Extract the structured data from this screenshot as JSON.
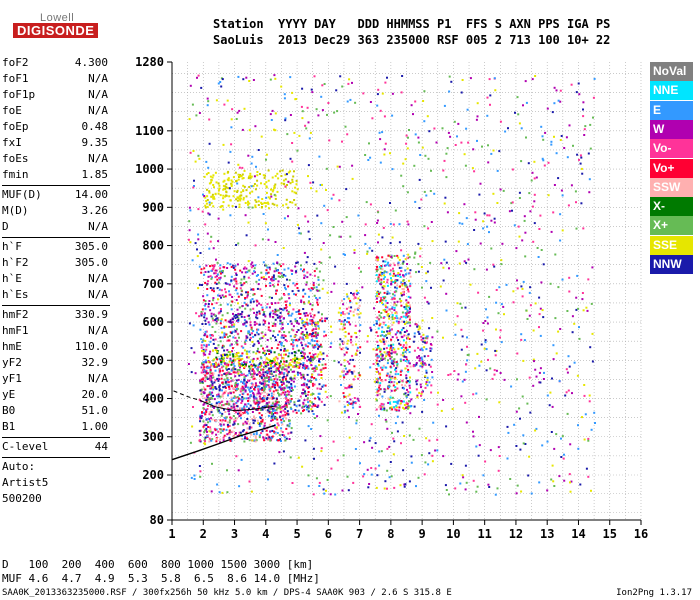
{
  "logo": {
    "top": "Lowell",
    "brand": "DIGISONDE"
  },
  "header": {
    "row1": [
      "Station",
      "YYYY",
      "DAY",
      "DDD",
      "HHMMSS",
      "P1",
      "FFS",
      "S",
      "AXN",
      "PPS",
      "IGA",
      "PS"
    ],
    "row2": [
      "SaoLuis",
      "2013",
      "Dec29",
      "363",
      "235000",
      "RSF",
      "005",
      "2",
      "713",
      "100",
      "10+",
      "22"
    ]
  },
  "params": {
    "group1": [
      {
        "label": "foF2",
        "value": "4.300"
      },
      {
        "label": "foF1",
        "value": "N/A"
      },
      {
        "label": "foF1p",
        "value": "N/A"
      },
      {
        "label": "foE",
        "value": "N/A"
      },
      {
        "label": "foEp",
        "value": "0.48"
      },
      {
        "label": "fxI",
        "value": "9.35"
      },
      {
        "label": "foEs",
        "value": "N/A"
      },
      {
        "label": "fmin",
        "value": "1.85"
      }
    ],
    "group2": [
      {
        "label": "MUF(D)",
        "value": "14.00"
      },
      {
        "label": "M(D)",
        "value": "3.26"
      },
      {
        "label": "D",
        "value": "N/A"
      }
    ],
    "group3": [
      {
        "label": "h`F",
        "value": "305.0"
      },
      {
        "label": "h`F2",
        "value": "305.0"
      },
      {
        "label": "h`E",
        "value": "N/A"
      },
      {
        "label": "h`Es",
        "value": "N/A"
      }
    ],
    "group4": [
      {
        "label": "hmF2",
        "value": "330.9"
      },
      {
        "label": "hmF1",
        "value": "N/A"
      },
      {
        "label": "hmE",
        "value": "110.0"
      },
      {
        "label": "yF2",
        "value": "32.9"
      },
      {
        "label": "yF1",
        "value": "N/A"
      },
      {
        "label": "yE",
        "value": "20.0"
      },
      {
        "label": "B0",
        "value": "51.0"
      },
      {
        "label": "B1",
        "value": "1.00"
      }
    ],
    "clevel": {
      "label": "C-level",
      "value": "44"
    },
    "auto": [
      "Auto:",
      "Artist5",
      "500200"
    ]
  },
  "legend": [
    {
      "label": "NoVal",
      "bg": "#808080",
      "fg": "#ffffff"
    },
    {
      "label": "NNE",
      "bg": "#00e5ff",
      "fg": "#ffffff"
    },
    {
      "label": "E",
      "bg": "#3399ff",
      "fg": "#ffffff"
    },
    {
      "label": "W",
      "bg": "#b000b0",
      "fg": "#ffffff"
    },
    {
      "label": "Vo-",
      "bg": "#ff3399",
      "fg": "#ffffff"
    },
    {
      "label": "Vo+",
      "bg": "#ff0033",
      "fg": "#ffffff"
    },
    {
      "label": "SSW",
      "bg": "#ffb0b0",
      "fg": "#ffffff"
    },
    {
      "label": "X-",
      "bg": "#007a00",
      "fg": "#ffffff"
    },
    {
      "label": "X+",
      "bg": "#66bb55",
      "fg": "#ffffff"
    },
    {
      "label": "SSE",
      "bg": "#e6e600",
      "fg": "#ffffff"
    },
    {
      "label": "NNW",
      "bg": "#1a1aaa",
      "fg": "#ffffff"
    }
  ],
  "bottom": {
    "d_label": "D",
    "d_values": [
      "100",
      "200",
      "400",
      "600",
      "800",
      "1000",
      "1500",
      "3000"
    ],
    "d_unit": "[km]",
    "muf_label": "MUF",
    "muf_values": [
      "4.6",
      "4.7",
      "4.9",
      "5.3",
      "5.8",
      "6.5",
      "8.6",
      "14.0"
    ],
    "muf_unit": "[MHz]"
  },
  "footer": {
    "left": "SAA0K_2013363235000.RSF / 300fx256h 50 kHz 5.0 km / DPS-4 SAA0K 903 / 2.6 S 315.8 E",
    "right": "Ion2Png 1.3.17"
  },
  "chart_data": {
    "type": "scatter",
    "title": "",
    "xlabel": "",
    "ylabel": "",
    "xlim": [
      1,
      16
    ],
    "ylim": [
      80,
      1280
    ],
    "x_ticks": [
      "1",
      "2",
      "3",
      "4",
      "5",
      "6",
      "7",
      "8",
      "9",
      "10",
      "11",
      "12",
      "13",
      "14",
      "15",
      "16"
    ],
    "y_ticks": [
      "80",
      "200",
      "300",
      "400",
      "500",
      "600",
      "700",
      "800",
      "900",
      "1000",
      "1100",
      "1280"
    ],
    "grid": true,
    "clusters": [
      {
        "name": "low",
        "x": [
          1.85,
          4.8
        ],
        "y": [
          290,
          500
        ],
        "density": 3,
        "colors": [
          "#ff0033",
          "#ff3399",
          "#b000b0",
          "#1a1aaa",
          "#3399ff",
          "#66bb55",
          "#ffb0b0"
        ]
      },
      {
        "name": "low-mid",
        "x": [
          1.9,
          5.7
        ],
        "y": [
          360,
          760
        ],
        "density": 2,
        "colors": [
          "#b000b0",
          "#1a1aaa",
          "#ff3399",
          "#ff0033",
          "#66bb55",
          "#3399ff"
        ]
      },
      {
        "name": "band600",
        "x": [
          2.8,
          4.6
        ],
        "y": [
          595,
          625
        ],
        "density": 2,
        "colors": [
          "#b000b0",
          "#1a1aaa"
        ]
      },
      {
        "name": "sse500",
        "x": [
          1.9,
          5.2
        ],
        "y": [
          485,
          530
        ],
        "density": 2,
        "colors": [
          "#e6e600",
          "#e6e600",
          "#007a00"
        ]
      },
      {
        "name": "sse-upper",
        "x": [
          2.0,
          5.0
        ],
        "y": [
          900,
          1000
        ],
        "density": 2,
        "colors": [
          "#e6e600",
          "#e6e600",
          "#cccc00"
        ]
      },
      {
        "name": "col6",
        "x": [
          5.1,
          5.9
        ],
        "y": [
          380,
          620
        ],
        "density": 2,
        "colors": [
          "#b000b0",
          "#ff3399",
          "#ff0033",
          "#1a1aaa",
          "#e6e600",
          "#66bb55",
          "#3399ff"
        ]
      },
      {
        "name": "col7",
        "x": [
          6.3,
          7.0
        ],
        "y": [
          380,
          680
        ],
        "density": 2,
        "colors": [
          "#ff0033",
          "#ff3399",
          "#b000b0",
          "#1a1aaa",
          "#3399ff",
          "#e6e600",
          "#ffb0b0"
        ]
      },
      {
        "name": "col8",
        "x": [
          7.5,
          8.6
        ],
        "y": [
          370,
          780
        ],
        "density": 3,
        "colors": [
          "#1a1aaa",
          "#ff0033",
          "#ff3399",
          "#b000b0",
          "#3399ff",
          "#66bb55",
          "#e6e600",
          "#ffb0b0",
          "#00e5ff"
        ]
      },
      {
        "name": "col9",
        "x": [
          8.7,
          9.3
        ],
        "y": [
          390,
          600
        ],
        "density": 2,
        "colors": [
          "#b000b0",
          "#ff3399",
          "#1a1aaa",
          "#3399ff",
          "#e6e600"
        ]
      },
      {
        "name": "col11",
        "x": [
          10.0,
          11.8
        ],
        "y": [
          450,
          620
        ],
        "density": 1,
        "colors": [
          "#e6e600",
          "#ff3399",
          "#b000b0",
          "#1a1aaa",
          "#3399ff"
        ]
      },
      {
        "name": "col13",
        "x": [
          12.2,
          13.5
        ],
        "y": [
          440,
          530
        ],
        "density": 1,
        "colors": [
          "#e6e600",
          "#ff3399",
          "#b000b0"
        ]
      },
      {
        "name": "sparse",
        "x": [
          1.5,
          14.5
        ],
        "y": [
          150,
          1250
        ],
        "density": 1,
        "colors": [
          "#ff3399",
          "#b000b0",
          "#1a1aaa",
          "#e6e600",
          "#3399ff",
          "#66bb55"
        ]
      }
    ]
  }
}
